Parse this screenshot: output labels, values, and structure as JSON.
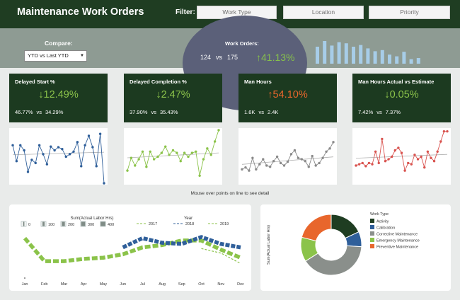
{
  "header": {
    "title": "Maintenance Work Orders",
    "filter_label": "Filter:",
    "filters": [
      "Work Type",
      "Location",
      "Priority"
    ]
  },
  "compare": {
    "label": "Compare:",
    "selected": "YTD vs Last YTD"
  },
  "work_orders": {
    "label": "Work Orders:",
    "current": "124",
    "vs": "vs",
    "previous": "175",
    "change": "↑41.13%"
  },
  "spark_bars": [
    30,
    40,
    32,
    38,
    36,
    30,
    33,
    27,
    22,
    24,
    16,
    13,
    21,
    8,
    10
  ],
  "kpis": [
    {
      "title": "Delayed Start %",
      "change": "↓12.49%",
      "trend": "good",
      "current": "46.77%",
      "vs": "vs",
      "previous": "34.29%"
    },
    {
      "title": "Delayed Completion %",
      "change": "↓2.47%",
      "trend": "good",
      "current": "37.90%",
      "vs": "vs",
      "previous": "35.43%"
    },
    {
      "title": "Man Hours",
      "change": "↑54.10%",
      "trend": "bad",
      "current": "1.6K",
      "vs": "vs",
      "previous": "2.4K"
    },
    {
      "title": "Man Hours Actual vs Estimate",
      "change": "↓0.05%",
      "trend": "good",
      "current": "7.42%",
      "vs": "vs",
      "previous": "7.37%"
    }
  ],
  "hint": "Mouse over points on line to see detail",
  "colors": {
    "dark_green": "#1c3a20",
    "good": "#8bc34a",
    "bad": "#e8662c",
    "spark_bar": "#a7cde8",
    "line_blue": "#2f5f9a",
    "line_green": "#8bc34a",
    "line_gray": "#8a8a8a",
    "line_red": "#d9534f",
    "trend": "#b0b0b0"
  },
  "chart_data": [
    {
      "type": "line",
      "name": "Delayed Start % trend",
      "color": "#2f5f9a",
      "values": [
        60,
        35,
        60,
        52,
        18,
        37,
        32,
        60,
        46,
        30,
        58,
        52,
        57,
        54,
        42,
        46,
        50,
        65,
        27,
        60,
        75,
        57,
        27,
        78,
        0
      ]
    },
    {
      "type": "line",
      "name": "Delayed Completion % trend",
      "color": "#8bc34a",
      "values": [
        20,
        40,
        28,
        38,
        50,
        26,
        50,
        38,
        42,
        48,
        58,
        45,
        52,
        48,
        35,
        48,
        42,
        48,
        50,
        12,
        38,
        55,
        45,
        66,
        84
      ]
    },
    {
      "type": "line",
      "name": "Man Hours trend",
      "color": "#8a8a8a",
      "values": [
        22,
        25,
        20,
        40,
        22,
        30,
        38,
        28,
        26,
        35,
        42,
        32,
        28,
        34,
        46,
        52,
        40,
        38,
        35,
        26,
        43,
        28,
        32,
        40,
        50,
        55,
        65
      ]
    },
    {
      "type": "line",
      "name": "Man Hours Actual vs Estimate trend",
      "color": "#d9534f",
      "values": [
        28,
        30,
        32,
        27,
        32,
        30,
        50,
        32,
        70,
        35,
        38,
        42,
        52,
        56,
        48,
        20,
        32,
        30,
        45,
        38,
        42,
        25,
        50,
        40,
        35,
        50,
        66,
        82,
        82
      ]
    },
    {
      "type": "line",
      "name": "Sum(Actual Labor Hrs) by Month",
      "title": "Sum(Actual  Labor Hrs)",
      "size_legend": [
        "0",
        "100",
        "200",
        "300",
        "400"
      ],
      "legend_title": "Year",
      "categories": [
        "Jan",
        "Feb",
        "Mar",
        "Apr",
        "May",
        "Jun",
        "Jul",
        "Aug",
        "Sep",
        "Oct",
        "Nov",
        "Dec"
      ],
      "series": [
        {
          "name": "2017",
          "color": "#8bc34a",
          "values": [
            310,
            110,
            110,
            130,
            140,
            170,
            230,
            250,
            290,
            290,
            210,
            140
          ],
          "style": "dash"
        },
        {
          "name": "2018",
          "color": "#2f5f9a",
          "values": [
            null,
            null,
            null,
            null,
            null,
            230,
            310,
            270,
            260,
            320,
            260,
            230
          ],
          "style": "thick"
        },
        {
          "name": "2019",
          "color": "#8bc34a",
          "values": [
            null,
            null,
            null,
            null,
            null,
            null,
            null,
            null,
            null,
            null,
            null,
            null
          ],
          "style": "thick"
        }
      ],
      "ylim": [
        0,
        400
      ]
    },
    {
      "type": "pie",
      "name": "Work Type donut",
      "ylabel": "Sum(Actual  Labor Hrs)",
      "legend_title": "Work Type",
      "slices": [
        {
          "label": "Activity",
          "value": 18,
          "color": "#1f3d22"
        },
        {
          "label": "Calibration",
          "value": 8,
          "color": "#2f5f9a"
        },
        {
          "label": "Corrective Maintenance",
          "value": 40,
          "color": "#8a8f8b"
        },
        {
          "label": "Emergency Maintenance",
          "value": 13,
          "color": "#8bc34a"
        },
        {
          "label": "Preventive Maintenance",
          "value": 21,
          "color": "#e8662c"
        }
      ]
    }
  ]
}
